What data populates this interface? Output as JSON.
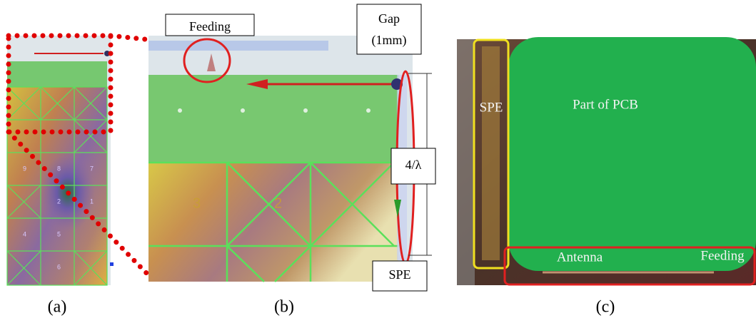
{
  "panels": [
    {
      "caption": "(a)",
      "grid_numbers": [
        "9",
        "8",
        "7",
        "2",
        "1",
        "4",
        "5",
        "6"
      ]
    },
    {
      "caption": "(b)",
      "grid_numbers": [
        "3",
        "2"
      ],
      "labels": {
        "feeding": "Feeding",
        "gap": [
          "Gap",
          "(1mm)"
        ],
        "length": "4/λ",
        "spe": "SPE"
      }
    },
    {
      "caption": "(c)",
      "labels": {
        "spe": "SPE",
        "pcb": "Part of PCB",
        "antenna": "Antenna",
        "feeding": "Feeding"
      }
    }
  ]
}
